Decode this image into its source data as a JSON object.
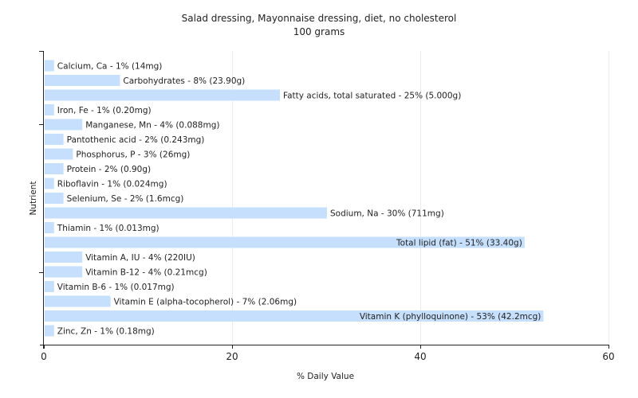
{
  "chart_data": {
    "type": "bar",
    "orientation": "horizontal",
    "title": "Salad dressing, Mayonnaise dressing, diet, no cholesterol",
    "subtitle": "100 grams",
    "xlabel": "% Daily Value",
    "ylabel": "Nutrient",
    "xlim": [
      0,
      60
    ],
    "xticks": [
      0,
      20,
      40,
      60
    ],
    "grid": true,
    "bar_color": "#c6dffc",
    "categories": [
      "Calcium, Ca",
      "Carbohydrates",
      "Fatty acids, total saturated",
      "Iron, Fe",
      "Manganese, Mn",
      "Pantothenic acid",
      "Phosphorus, P",
      "Protein",
      "Riboflavin",
      "Selenium, Se",
      "Sodium, Na",
      "Thiamin",
      "Total lipid (fat)",
      "Vitamin A, IU",
      "Vitamin B-12",
      "Vitamin B-6",
      "Vitamin E (alpha-tocopherol)",
      "Vitamin K (phylloquinone)",
      "Zinc, Zn"
    ],
    "values": [
      1,
      8,
      25,
      1,
      4,
      2,
      3,
      2,
      1,
      2,
      30,
      1,
      51,
      4,
      4,
      1,
      7,
      53,
      1
    ],
    "labels": [
      "Calcium, Ca - 1% (14mg)",
      "Carbohydrates - 8% (23.90g)",
      "Fatty acids, total saturated - 25% (5.000g)",
      "Iron, Fe - 1% (0.20mg)",
      "Manganese, Mn - 4% (0.088mg)",
      "Pantothenic acid - 2% (0.243mg)",
      "Phosphorus, P - 3% (26mg)",
      "Protein - 2% (0.90g)",
      "Riboflavin - 1% (0.024mg)",
      "Selenium, Se - 2% (1.6mcg)",
      "Sodium, Na - 30% (711mg)",
      "Thiamin - 1% (0.013mg)",
      "Total lipid (fat) - 51% (33.40g)",
      "Vitamin A, IU - 4% (220IU)",
      "Vitamin B-12 - 4% (0.21mcg)",
      "Vitamin B-6 - 1% (0.017mg)",
      "Vitamin E (alpha-tocopherol) - 7% (2.06mg)",
      "Vitamin K (phylloquinone) - 53% (42.2mcg)",
      "Zinc, Zn - 1% (0.18mg)"
    ]
  }
}
